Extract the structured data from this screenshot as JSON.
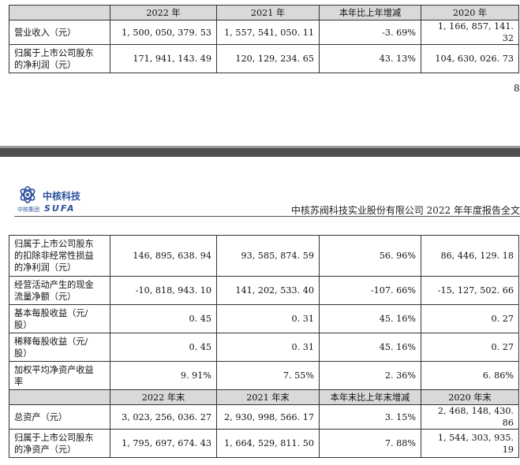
{
  "top_table": {
    "headers": [
      "",
      "2022 年",
      "2021 年",
      "本年比上年增减",
      "2020 年"
    ],
    "rows": [
      {
        "label": "营业收入（元）",
        "values": [
          "1, 500, 050, 379. 53",
          "1, 557, 541, 050. 11",
          "-3. 69%",
          "1, 166, 857, 141. 32"
        ]
      },
      {
        "label_lines": [
          "归属于上市公司股东",
          "的净利润（元）"
        ],
        "values": [
          "171, 941, 143. 49",
          "120, 129, 234. 65",
          "43. 13%",
          "104, 630, 026. 73"
        ]
      }
    ]
  },
  "page_number": "8",
  "header": {
    "logo_cn": "中核科技",
    "logo_en": "SUFA",
    "logo_group": "中核集团",
    "title": "中核苏阀科技实业股份有限公司 2022 年年度报告全文"
  },
  "bottom_table": {
    "rows": [
      {
        "label_lines": [
          "归属于上市公司股东",
          "的扣除非经常性损益",
          "的净利润（元）"
        ],
        "values": [
          "146, 895, 638. 94",
          "93, 585, 874. 59",
          "56. 96%",
          "86, 446, 129. 18"
        ]
      },
      {
        "label_lines": [
          "经营活动产生的现金",
          "流量净额（元）"
        ],
        "values": [
          "-10, 818, 943. 10",
          "141, 202, 533. 40",
          "-107. 66%",
          "-15, 127, 502. 66"
        ]
      },
      {
        "label_lines": [
          "基本每股收益（元/",
          "股）"
        ],
        "values": [
          "0. 45",
          "0. 31",
          "45. 16%",
          "0. 27"
        ]
      },
      {
        "label_lines": [
          "稀释每股收益（元/",
          "股）"
        ],
        "values": [
          "0. 45",
          "0. 31",
          "45. 16%",
          "0. 27"
        ]
      },
      {
        "label_lines": [
          "加权平均净资产收益",
          "率"
        ],
        "values": [
          "9. 91%",
          "7. 55%",
          "2. 36%",
          "6. 86%"
        ]
      }
    ],
    "headers2": [
      "",
      "2022 年末",
      "2021 年末",
      "本年末比上年末增减",
      "2020 年末"
    ],
    "rows2": [
      {
        "label": "总资产（元）",
        "values": [
          "3, 023, 256, 036. 27",
          "2, 930, 998, 566. 17",
          "3. 15%",
          "2, 468, 148, 430. 86"
        ]
      },
      {
        "label_lines": [
          "归属于上市公司股东",
          "的净资产（元）"
        ],
        "values": [
          "1, 795, 697, 674. 43",
          "1, 664, 529, 811. 50",
          "7. 88%",
          "1, 544, 303, 935. 19"
        ]
      }
    ]
  },
  "colors": {
    "header_fill": "#d9d9d9",
    "divider": "#4f4f4f",
    "logo_blue": "#2b4f9c"
  }
}
